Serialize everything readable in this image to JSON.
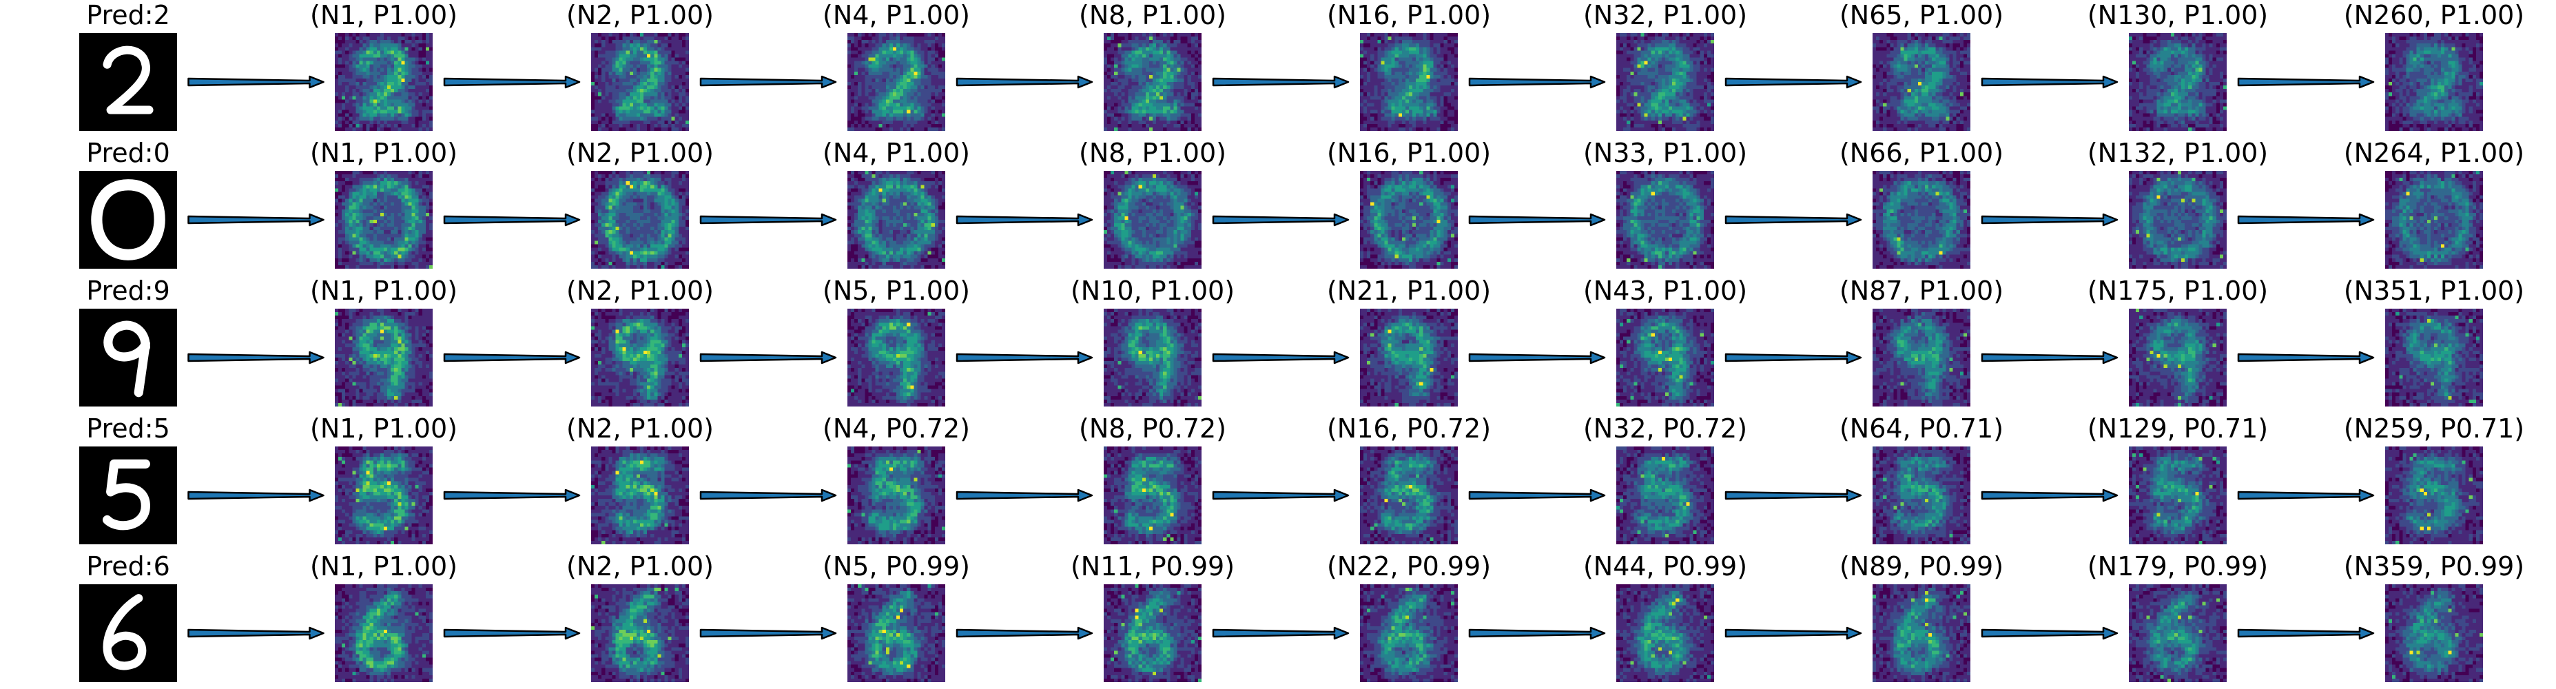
{
  "rows": [
    {
      "pred_label": "Pred:2",
      "digit": "2",
      "steps": [
        "(N1, P1.00)",
        "(N2, P1.00)",
        "(N4, P1.00)",
        "(N8, P1.00)",
        "(N16, P1.00)",
        "(N32, P1.00)",
        "(N65, P1.00)",
        "(N130, P1.00)",
        "(N260, P1.00)"
      ]
    },
    {
      "pred_label": "Pred:0",
      "digit": "0",
      "steps": [
        "(N1, P1.00)",
        "(N2, P1.00)",
        "(N4, P1.00)",
        "(N8, P1.00)",
        "(N16, P1.00)",
        "(N33, P1.00)",
        "(N66, P1.00)",
        "(N132, P1.00)",
        "(N264, P1.00)"
      ]
    },
    {
      "pred_label": "Pred:9",
      "digit": "9",
      "steps": [
        "(N1, P1.00)",
        "(N2, P1.00)",
        "(N5, P1.00)",
        "(N10, P1.00)",
        "(N21, P1.00)",
        "(N43, P1.00)",
        "(N87, P1.00)",
        "(N175, P1.00)",
        "(N351, P1.00)"
      ]
    },
    {
      "pred_label": "Pred:5",
      "digit": "5",
      "steps": [
        "(N1, P1.00)",
        "(N2, P1.00)",
        "(N4, P0.72)",
        "(N8, P0.72)",
        "(N16, P0.72)",
        "(N32, P0.72)",
        "(N64, P0.71)",
        "(N129, P0.71)",
        "(N259, P0.71)"
      ]
    },
    {
      "pred_label": "Pred:6",
      "digit": "6",
      "steps": [
        "(N1, P1.00)",
        "(N2, P1.00)",
        "(N5, P0.99)",
        "(N11, P0.99)",
        "(N22, P0.99)",
        "(N44, P0.99)",
        "(N89, P0.99)",
        "(N179, P0.99)",
        "(N359, P0.99)"
      ]
    }
  ],
  "colors": {
    "background": "#ffffff",
    "text": "#000000",
    "arrow_fill": "#1f77b4",
    "arrow_stroke": "#000000",
    "digit_background": "#000000",
    "digit_stroke": "#ffffff",
    "colormap": [
      "#440154",
      "#482878",
      "#3e4989",
      "#31688e",
      "#26828e",
      "#1f9e89",
      "#35b779",
      "#6ece58",
      "#b5de2b",
      "#fde725"
    ]
  },
  "icons": {
    "arrow": "long-thin-right-arrow"
  }
}
